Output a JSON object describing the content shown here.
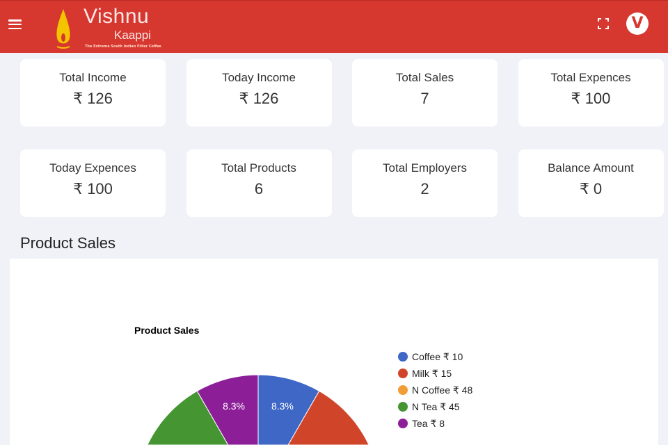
{
  "header": {
    "brand": "Vishnu",
    "brand_sub": "Kaappi",
    "tagline": "The Extreme South Indian Filter Coffee",
    "avatar_letter": "V",
    "color": "#d63830",
    "icons": [
      "menu-icon",
      "fullscreen-icon"
    ]
  },
  "cards": [
    {
      "label": "Total Income",
      "value": "₹ 126"
    },
    {
      "label": "Today Income",
      "value": "₹ 126"
    },
    {
      "label": "Total Sales",
      "value": "7"
    },
    {
      "label": "Total Expences",
      "value": "₹ 100"
    },
    {
      "label": "Today Expences",
      "value": "₹ 100"
    },
    {
      "label": "Total Products",
      "value": "6"
    },
    {
      "label": "Total Employers",
      "value": "2"
    },
    {
      "label": "Balance Amount",
      "value": "₹ 0"
    }
  ],
  "section_title": "Product Sales",
  "chart_data": {
    "type": "pie",
    "title": "Product Sales",
    "legend_position": "right",
    "categories": [
      "Coffee ₹ 10",
      "Milk ₹ 15",
      "N Coffee ₹ 48",
      "N Tea ₹ 45",
      "Tea ₹ 8"
    ],
    "values": [
      8.3,
      16.7,
      50,
      16.7,
      8.3
    ],
    "labels": [
      "8.3%",
      "",
      "",
      "",
      "8.3%"
    ],
    "colors": [
      "#3f67c6",
      "#d0452a",
      "#f19e38",
      "#459633",
      "#8c1f98"
    ]
  }
}
